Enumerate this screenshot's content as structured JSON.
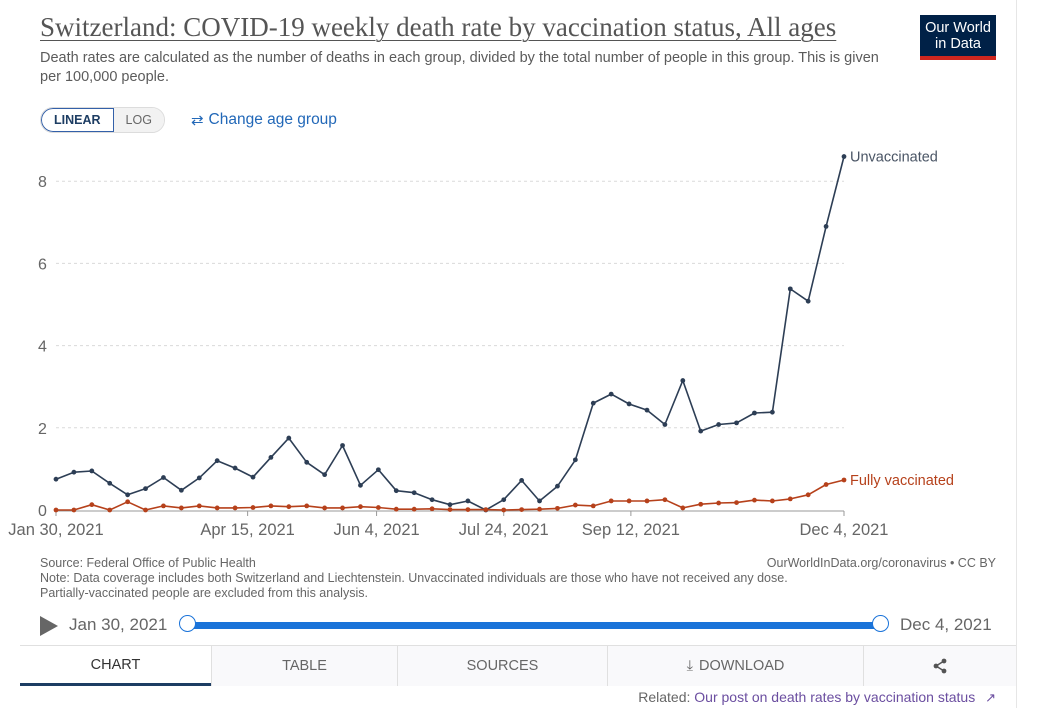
{
  "header": {
    "title": "Switzerland: COVID-19 weekly death rate by vaccination status, All ages",
    "subtitle": "Death rates are calculated as the number of deaths in each group, divided by the total number of people in this group. This is given per 100,000 people.",
    "logo_line1": "Our World",
    "logo_line2": "in Data"
  },
  "controls": {
    "linear_label": "LINEAR",
    "log_label": "LOG",
    "change_age_label": "Change age group",
    "active_scale": "LINEAR"
  },
  "chart_data": {
    "type": "line",
    "title": "Switzerland: COVID-19 weekly death rate by vaccination status, All ages",
    "x_tick_labels": [
      "Jan 30, 2021",
      "Apr 15, 2021",
      "Jun 4, 2021",
      "Jul 24, 2021",
      "Sep 12, 2021",
      "Dec 4, 2021"
    ],
    "x_tick_weeks": [
      0,
      10.7,
      17.9,
      25,
      32.1,
      44
    ],
    "y_ticks": [
      0,
      2,
      4,
      6,
      8
    ],
    "ylim": [
      0,
      8.6
    ],
    "grid": true,
    "legend_placement": "line-end labels",
    "x": [
      "2021-01-30",
      "2021-02-06",
      "2021-02-13",
      "2021-02-20",
      "2021-02-27",
      "2021-03-06",
      "2021-03-13",
      "2021-03-20",
      "2021-03-27",
      "2021-04-03",
      "2021-04-10",
      "2021-04-17",
      "2021-04-24",
      "2021-05-01",
      "2021-05-08",
      "2021-05-15",
      "2021-05-22",
      "2021-05-29",
      "2021-06-05",
      "2021-06-12",
      "2021-06-19",
      "2021-06-26",
      "2021-07-03",
      "2021-07-10",
      "2021-07-17",
      "2021-07-24",
      "2021-07-31",
      "2021-08-07",
      "2021-08-14",
      "2021-08-21",
      "2021-08-28",
      "2021-09-04",
      "2021-09-11",
      "2021-09-18",
      "2021-09-25",
      "2021-10-02",
      "2021-10-09",
      "2021-10-16",
      "2021-10-23",
      "2021-10-30",
      "2021-11-06",
      "2021-11-13",
      "2021-11-20",
      "2021-11-27",
      "2021-12-04"
    ],
    "series": [
      {
        "name": "Unvaccinated",
        "color": "#2d3e55",
        "values": [
          0.75,
          0.92,
          0.95,
          0.65,
          0.37,
          0.52,
          0.79,
          0.48,
          0.78,
          1.2,
          1.02,
          0.8,
          1.28,
          1.75,
          1.16,
          0.86,
          1.57,
          0.6,
          0.98,
          0.47,
          0.42,
          0.25,
          0.13,
          0.22,
          0.0,
          0.25,
          0.72,
          0.22,
          0.58,
          1.22,
          2.6,
          2.82,
          2.58,
          2.43,
          2.08,
          3.15,
          1.92,
          2.08,
          2.12,
          2.36,
          2.38,
          5.38,
          5.08,
          6.9,
          8.6
        ]
      },
      {
        "name": "Fully vaccinated",
        "color": "#b6411b",
        "values": [
          0.0,
          0.0,
          0.13,
          0.0,
          0.2,
          0.0,
          0.1,
          0.05,
          0.1,
          0.05,
          0.05,
          0.06,
          0.1,
          0.08,
          0.1,
          0.05,
          0.05,
          0.08,
          0.06,
          0.02,
          0.02,
          0.03,
          0.01,
          0.01,
          0.01,
          0.0,
          0.01,
          0.02,
          0.04,
          0.12,
          0.1,
          0.22,
          0.22,
          0.22,
          0.25,
          0.05,
          0.14,
          0.17,
          0.18,
          0.24,
          0.22,
          0.27,
          0.37,
          0.62,
          0.73
        ]
      }
    ]
  },
  "footer": {
    "source": "Source: Federal Office of Public Health",
    "note_line1": "Note: Data coverage includes both Switzerland and Liechtenstein. Unvaccinated individuals are those who have not received any dose.",
    "note_line2": "Partially-vaccinated people are excluded from this analysis.",
    "credit": "OurWorldInData.org/coronavirus • CC BY"
  },
  "timeline": {
    "start": "Jan 30, 2021",
    "end": "Dec 4, 2021"
  },
  "tabs": [
    "CHART",
    "TABLE",
    "SOURCES",
    "DOWNLOAD",
    ""
  ],
  "related": {
    "prefix": "Related:",
    "link": "Our post on death rates by vaccination status"
  }
}
